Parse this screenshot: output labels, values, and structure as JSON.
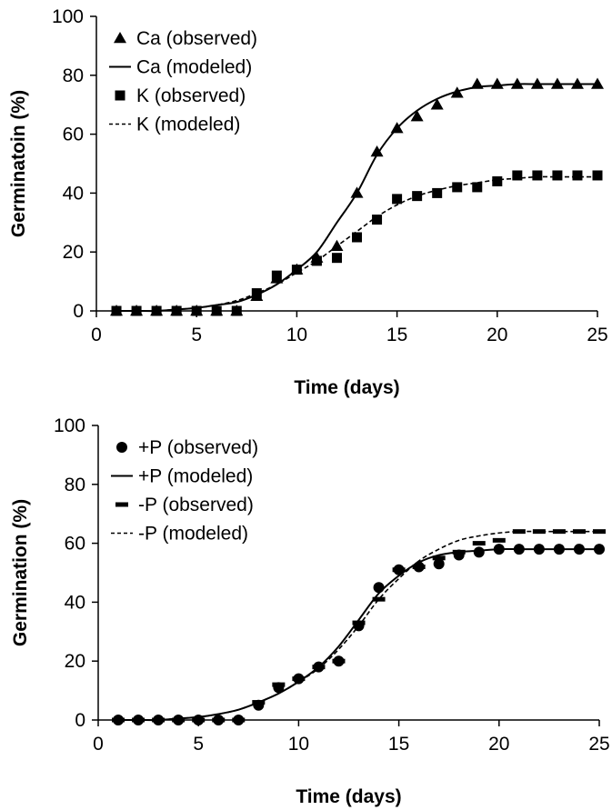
{
  "chart_data": [
    {
      "type": "scatter",
      "title": "",
      "xlabel": "Time (days)",
      "ylabel": "Germinatoin (%)",
      "xlim": [
        0,
        25
      ],
      "ylim": [
        0,
        100
      ],
      "xticks": [
        0,
        5,
        10,
        15,
        20,
        25
      ],
      "yticks": [
        0,
        20,
        40,
        60,
        80,
        100
      ],
      "grid": false,
      "legend_position": "top-left",
      "series": [
        {
          "name": "Ca (observed)",
          "kind": "markers",
          "marker": "triangle",
          "x": [
            1,
            2,
            3,
            4,
            5,
            6,
            7,
            8,
            9,
            10,
            11,
            12,
            13,
            14,
            15,
            16,
            17,
            18,
            19,
            20,
            21,
            22,
            23,
            24,
            25
          ],
          "y": [
            0,
            0,
            0,
            0,
            0,
            0,
            0,
            5,
            11,
            14,
            18,
            22,
            40,
            54,
            62,
            66,
            70,
            74,
            77,
            77,
            77,
            77,
            77,
            77,
            77
          ]
        },
        {
          "name": "Ca (modeled)",
          "kind": "line",
          "dash": "solid",
          "x": [
            1,
            2,
            3,
            4,
            5,
            6,
            7,
            8,
            9,
            10,
            11,
            12,
            13,
            14,
            15,
            16,
            17,
            18,
            19,
            20,
            21,
            22,
            23,
            24,
            25
          ],
          "y": [
            0,
            0,
            0,
            0.5,
            1,
            2,
            3,
            5.5,
            9,
            14,
            20,
            30,
            40,
            53,
            62,
            68,
            72,
            74.5,
            76,
            76.5,
            77,
            77,
            77,
            77,
            77
          ]
        },
        {
          "name": "K (observed)",
          "kind": "markers",
          "marker": "square",
          "x": [
            1,
            2,
            3,
            4,
            5,
            6,
            7,
            8,
            9,
            10,
            11,
            12,
            13,
            14,
            15,
            16,
            17,
            18,
            19,
            20,
            21,
            22,
            23,
            24,
            25
          ],
          "y": [
            0,
            0,
            0,
            0,
            0,
            0,
            0,
            6,
            12,
            14,
            17,
            18,
            25,
            31,
            38,
            39,
            40,
            42,
            42,
            44,
            46,
            46,
            46,
            46,
            46
          ]
        },
        {
          "name": "K (modeled)",
          "kind": "line",
          "dash": "dashed",
          "x": [
            1,
            2,
            3,
            4,
            5,
            6,
            7,
            8,
            9,
            10,
            11,
            12,
            13,
            14,
            15,
            16,
            17,
            18,
            19,
            20,
            21,
            22,
            23,
            24,
            25
          ],
          "y": [
            0,
            0,
            0,
            0.5,
            1,
            2,
            3.5,
            6,
            9,
            13,
            17,
            22,
            27,
            32,
            36,
            39,
            41,
            42.5,
            43.5,
            44.5,
            45,
            45.5,
            45.5,
            45.5,
            45.5
          ]
        }
      ]
    },
    {
      "type": "scatter",
      "title": "",
      "xlabel": "Time (days)",
      "ylabel": "Germination (%)",
      "xlim": [
        0,
        25
      ],
      "ylim": [
        0,
        100
      ],
      "xticks": [
        0,
        5,
        10,
        15,
        20,
        25
      ],
      "yticks": [
        0,
        20,
        40,
        60,
        80,
        100
      ],
      "grid": false,
      "legend_position": "top-left",
      "series": [
        {
          "name": "+P (observed)",
          "kind": "markers",
          "marker": "circle",
          "x": [
            1,
            2,
            3,
            4,
            5,
            6,
            7,
            8,
            9,
            10,
            11,
            12,
            13,
            14,
            15,
            16,
            17,
            18,
            19,
            20,
            21,
            22,
            23,
            24,
            25
          ],
          "y": [
            0,
            0,
            0,
            0,
            0,
            0,
            0,
            5,
            11,
            14,
            18,
            20,
            32,
            45,
            51,
            52,
            53,
            56,
            57,
            58,
            58,
            58,
            58,
            58,
            58
          ]
        },
        {
          "name": "+P (modeled)",
          "kind": "line",
          "dash": "solid",
          "x": [
            1,
            2,
            3,
            4,
            5,
            6,
            7,
            8,
            9,
            10,
            11,
            12,
            13,
            14,
            15,
            16,
            17,
            18,
            19,
            20,
            21,
            22,
            23,
            24,
            25
          ],
          "y": [
            0,
            0,
            0,
            0.5,
            1,
            2,
            3.5,
            6,
            9,
            13,
            18,
            25,
            34,
            43,
            49,
            53.5,
            56,
            57,
            57.5,
            58,
            58,
            58,
            58,
            58,
            58
          ]
        },
        {
          "name": "-P (observed)",
          "kind": "markers",
          "marker": "dash",
          "x": [
            1,
            2,
            3,
            4,
            5,
            6,
            7,
            8,
            9,
            10,
            11,
            12,
            13,
            14,
            15,
            16,
            17,
            18,
            19,
            20,
            21,
            22,
            23,
            24,
            25
          ],
          "y": [
            0,
            0,
            0,
            0,
            0,
            0,
            0,
            6,
            12,
            14,
            18,
            20,
            33,
            41,
            51,
            52,
            55,
            57,
            60,
            61,
            64,
            64,
            64,
            64,
            64
          ]
        },
        {
          "name": "-P (modeled)",
          "kind": "line",
          "dash": "dashed",
          "x": [
            1,
            2,
            3,
            4,
            5,
            6,
            7,
            8,
            9,
            10,
            11,
            12,
            13,
            14,
            15,
            16,
            17,
            18,
            19,
            20,
            21,
            22,
            23,
            24,
            25
          ],
          "y": [
            0,
            0,
            0,
            0.5,
            1,
            2,
            3.5,
            6,
            9,
            13,
            17.5,
            24,
            32,
            41,
            48,
            54,
            58,
            61,
            62.5,
            63.5,
            64,
            64,
            64,
            64,
            64
          ]
        }
      ]
    }
  ]
}
